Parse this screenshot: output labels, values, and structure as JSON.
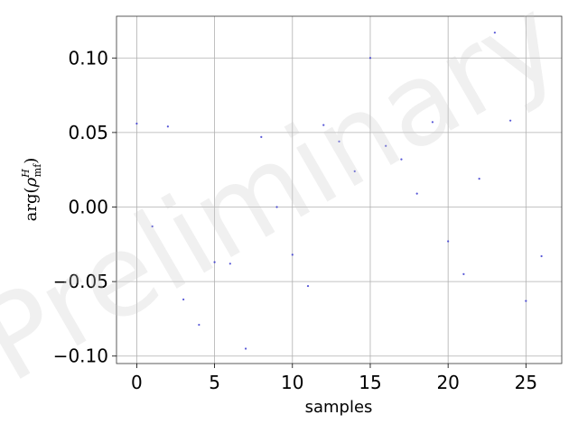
{
  "chart_data": {
    "type": "scatter",
    "title": "",
    "xlabel": "samples",
    "ylabel": {
      "func": "arg",
      "symbol": "ρ",
      "superscript": "H",
      "subscript": "mf"
    },
    "xlim": [
      -1.3,
      27.3
    ],
    "ylim": [
      -0.105,
      0.128
    ],
    "xticks": [
      0,
      5,
      10,
      15,
      20,
      25
    ],
    "xtick_labels": [
      "0",
      "5",
      "10",
      "15",
      "20",
      "25"
    ],
    "yticks": [
      0.1,
      0.05,
      0.0,
      -0.05,
      -0.1
    ],
    "ytick_labels": [
      "0.10",
      "0.05",
      "0.00",
      "−0.05",
      "−0.10"
    ],
    "grid": true,
    "marker_color": "#3a3ad0",
    "watermark": "Preliminary",
    "series": [
      {
        "x": [
          0,
          1,
          2,
          3,
          4,
          5,
          6,
          7,
          8,
          9,
          10,
          11,
          12,
          13,
          14,
          15,
          16,
          17,
          18,
          19,
          20,
          21,
          22,
          23,
          24,
          25,
          26
        ],
        "y": [
          0.056,
          -0.013,
          0.054,
          -0.062,
          -0.079,
          -0.037,
          -0.038,
          -0.095,
          0.047,
          0.0,
          -0.032,
          -0.053,
          0.055,
          0.044,
          0.024,
          0.1,
          0.041,
          0.032,
          0.009,
          0.057,
          -0.023,
          -0.045,
          0.019,
          0.117,
          0.058,
          -0.063,
          -0.033
        ]
      }
    ]
  }
}
